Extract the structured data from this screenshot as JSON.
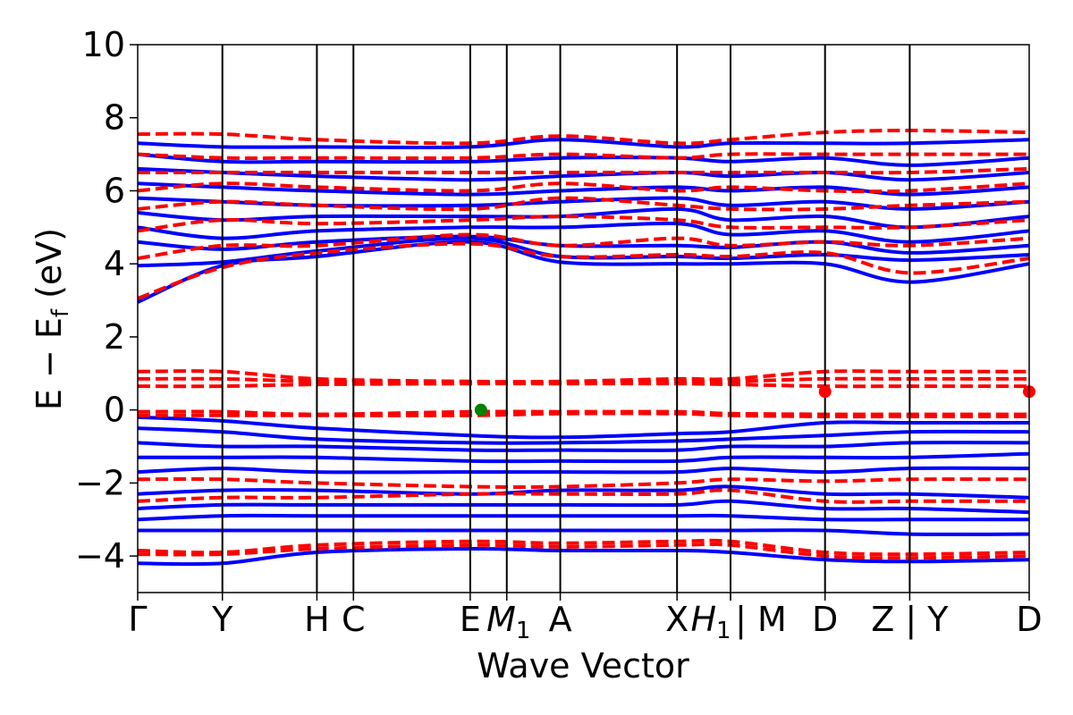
{
  "chart_data": {
    "type": "line",
    "title": "",
    "xlabel": "Wave Vector",
    "ylabel_main": "E − E",
    "ylabel_sub": "f",
    "ylabel_unit": " (eV)",
    "ylim": [
      -5,
      10
    ],
    "yticks": [
      -4,
      -2,
      0,
      2,
      4,
      6,
      8,
      10
    ],
    "ytick_labels": [
      "−4",
      "−2",
      "0",
      "2",
      "4",
      "6",
      "8",
      "10"
    ],
    "grid": false,
    "legend": "none",
    "kpath": [
      {
        "label": "Γ",
        "k": 0.0
      },
      {
        "label": "Y",
        "k": 0.095
      },
      {
        "label": "H",
        "k": 0.201
      },
      {
        "label": "C",
        "k": 0.242
      },
      {
        "label": "E",
        "k": 0.373
      },
      {
        "label": "M",
        "sub": "1",
        "k": 0.414
      },
      {
        "label": "A",
        "k": 0.474
      },
      {
        "label": "X",
        "k": 0.605
      },
      {
        "label": "H",
        "sub": "1",
        "k": 0.665
      },
      {
        "label": "| M",
        "k": 0.665
      },
      {
        "label": "D",
        "k": 0.771
      },
      {
        "label": "Z | Y",
        "k": 0.866
      },
      {
        "label": "D",
        "k": 1.0
      }
    ],
    "path_breaks": [
      0.665,
      0.866
    ],
    "series": [
      {
        "style": "solid",
        "color": "#0000ff",
        "bands": [
          {
            "k": [
              0,
              0.095,
              0.201,
              0.373,
              0.474,
              0.605,
              0.665,
              0.771,
              0.866,
              1.0
            ],
            "y": [
              2.95,
              3.95,
              4.2,
              4.6,
              4.05,
              4.0,
              4.0,
              4.0,
              3.5,
              4.0
            ]
          },
          {
            "k": [
              0,
              0.095,
              0.201,
              0.373,
              0.474,
              0.605,
              0.665,
              0.771,
              0.866,
              1.0
            ],
            "y": [
              3.95,
              4.05,
              4.35,
              4.7,
              4.2,
              4.2,
              4.15,
              4.25,
              4.1,
              4.25
            ]
          },
          {
            "k": [
              0,
              0.095,
              0.201,
              0.373,
              0.474,
              0.605,
              0.665,
              0.771,
              0.866,
              1.0
            ],
            "y": [
              4.6,
              4.4,
              4.6,
              4.75,
              4.5,
              4.5,
              4.45,
              4.6,
              4.3,
              4.5
            ]
          },
          {
            "k": [
              0,
              0.095,
              0.201,
              0.373,
              0.474,
              0.605,
              0.665,
              0.771,
              0.866,
              1.0
            ],
            "y": [
              5.0,
              4.7,
              4.9,
              5.0,
              5.0,
              5.1,
              4.8,
              4.9,
              4.6,
              4.9
            ]
          },
          {
            "k": [
              0,
              0.095,
              0.201,
              0.373,
              0.474,
              0.605,
              0.665,
              0.771,
              0.866,
              1.0
            ],
            "y": [
              5.4,
              5.2,
              5.3,
              5.3,
              5.3,
              5.5,
              5.2,
              5.3,
              5.0,
              5.3
            ]
          },
          {
            "k": [
              0,
              0.095,
              0.201,
              0.373,
              0.474,
              0.605,
              0.665,
              0.771,
              0.866,
              1.0
            ],
            "y": [
              5.8,
              5.7,
              5.6,
              5.6,
              5.7,
              5.8,
              5.6,
              5.7,
              5.5,
              5.7
            ]
          },
          {
            "k": [
              0,
              0.095,
              0.201,
              0.373,
              0.474,
              0.605,
              0.665,
              0.771,
              0.866,
              1.0
            ],
            "y": [
              6.2,
              6.1,
              6.0,
              5.9,
              6.0,
              6.1,
              6.0,
              6.1,
              5.9,
              6.1
            ]
          },
          {
            "k": [
              0,
              0.095,
              0.201,
              0.373,
              0.474,
              0.605,
              0.665,
              0.771,
              0.866,
              1.0
            ],
            "y": [
              6.6,
              6.5,
              6.4,
              6.3,
              6.4,
              6.5,
              6.4,
              6.5,
              6.3,
              6.5
            ]
          },
          {
            "k": [
              0,
              0.095,
              0.201,
              0.373,
              0.474,
              0.605,
              0.665,
              0.771,
              0.866,
              1.0
            ],
            "y": [
              7.0,
              6.8,
              6.8,
              6.8,
              6.9,
              6.9,
              6.8,
              6.9,
              6.7,
              6.9
            ]
          },
          {
            "k": [
              0,
              0.095,
              0.201,
              0.373,
              0.474,
              0.605,
              0.665,
              0.771,
              0.866,
              1.0
            ],
            "y": [
              7.3,
              7.2,
              7.2,
              7.2,
              7.4,
              7.2,
              7.3,
              7.3,
              7.3,
              7.4
            ]
          },
          {
            "k": [
              0,
              0.095,
              0.201,
              0.373,
              0.474,
              0.605,
              0.665,
              0.771,
              0.866,
              1.0
            ],
            "y": [
              -0.2,
              -0.3,
              -0.5,
              -0.7,
              -0.75,
              -0.65,
              -0.6,
              -0.35,
              -0.35,
              -0.35
            ]
          },
          {
            "k": [
              0,
              0.095,
              0.201,
              0.373,
              0.474,
              0.605,
              0.665,
              0.771,
              0.866,
              1.0
            ],
            "y": [
              -0.5,
              -0.6,
              -0.8,
              -0.9,
              -0.9,
              -0.85,
              -0.8,
              -0.7,
              -0.6,
              -0.6
            ]
          },
          {
            "k": [
              0,
              0.095,
              0.201,
              0.373,
              0.474,
              0.605,
              0.665,
              0.771,
              0.866,
              1.0
            ],
            "y": [
              -0.9,
              -1.0,
              -1.0,
              -1.1,
              -1.1,
              -1.1,
              -1.0,
              -1.0,
              -0.9,
              -0.9
            ]
          },
          {
            "k": [
              0,
              0.095,
              0.201,
              0.373,
              0.474,
              0.605,
              0.665,
              0.771,
              0.866,
              1.0
            ],
            "y": [
              -1.3,
              -1.3,
              -1.3,
              -1.4,
              -1.4,
              -1.4,
              -1.3,
              -1.3,
              -1.3,
              -1.2
            ]
          },
          {
            "k": [
              0,
              0.095,
              0.201,
              0.373,
              0.474,
              0.605,
              0.665,
              0.771,
              0.866,
              1.0
            ],
            "y": [
              -1.7,
              -1.6,
              -1.7,
              -1.7,
              -1.7,
              -1.7,
              -1.6,
              -1.7,
              -1.6,
              -1.6
            ]
          },
          {
            "k": [
              0,
              0.095,
              0.201,
              0.373,
              0.474,
              0.605,
              0.665,
              0.771,
              0.866,
              1.0
            ],
            "y": [
              -2.3,
              -2.2,
              -2.2,
              -2.3,
              -2.2,
              -2.2,
              -2.1,
              -2.3,
              -2.3,
              -2.4
            ]
          },
          {
            "k": [
              0,
              0.095,
              0.201,
              0.373,
              0.474,
              0.605,
              0.665,
              0.771,
              0.866,
              1.0
            ],
            "y": [
              -2.7,
              -2.6,
              -2.6,
              -2.6,
              -2.6,
              -2.6,
              -2.5,
              -2.7,
              -2.7,
              -2.8
            ]
          },
          {
            "k": [
              0,
              0.095,
              0.201,
              0.373,
              0.474,
              0.605,
              0.665,
              0.771,
              0.866,
              1.0
            ],
            "y": [
              -3.0,
              -2.9,
              -2.9,
              -2.9,
              -2.9,
              -2.9,
              -2.9,
              -3.0,
              -3.0,
              -3.0
            ]
          },
          {
            "k": [
              0,
              0.095,
              0.201,
              0.373,
              0.474,
              0.605,
              0.665,
              0.771,
              0.866,
              1.0
            ],
            "y": [
              -3.3,
              -3.3,
              -3.3,
              -3.3,
              -3.3,
              -3.3,
              -3.3,
              -3.3,
              -3.4,
              -3.4
            ]
          },
          {
            "k": [
              0,
              0.095,
              0.201,
              0.373,
              0.474,
              0.605,
              0.665,
              0.771,
              0.866,
              1.0
            ],
            "y": [
              -4.2,
              -4.2,
              -3.9,
              -3.8,
              -3.85,
              -3.85,
              -3.9,
              -4.1,
              -4.15,
              -4.1
            ]
          }
        ]
      },
      {
        "style": "dashed",
        "color": "#ff0000",
        "bands": [
          {
            "k": [
              0,
              0.095,
              0.201,
              0.373,
              0.474,
              0.605,
              0.665,
              0.771,
              0.866,
              1.0
            ],
            "y": [
              3.05,
              3.9,
              4.3,
              4.55,
              4.2,
              4.25,
              4.2,
              4.3,
              3.75,
              4.15
            ]
          },
          {
            "k": [
              0,
              0.095,
              0.201,
              0.373,
              0.474,
              0.605,
              0.665,
              0.771,
              0.866,
              1.0
            ],
            "y": [
              4.15,
              4.5,
              4.5,
              4.8,
              4.5,
              4.7,
              4.5,
              4.6,
              4.5,
              4.7
            ]
          },
          {
            "k": [
              0,
              0.095,
              0.201,
              0.373,
              0.474,
              0.605,
              0.665,
              0.771,
              0.866,
              1.0
            ],
            "y": [
              4.9,
              5.2,
              5.1,
              5.2,
              5.3,
              5.2,
              5.0,
              5.0,
              5.0,
              5.2
            ]
          },
          {
            "k": [
              0,
              0.095,
              0.201,
              0.373,
              0.474,
              0.605,
              0.665,
              0.771,
              0.866,
              1.0
            ],
            "y": [
              5.5,
              5.7,
              5.6,
              5.5,
              5.8,
              5.6,
              5.5,
              5.5,
              5.6,
              5.7
            ]
          },
          {
            "k": [
              0,
              0.095,
              0.201,
              0.373,
              0.474,
              0.605,
              0.665,
              0.771,
              0.866,
              1.0
            ],
            "y": [
              6.0,
              6.2,
              6.1,
              6.0,
              6.2,
              6.0,
              6.1,
              6.0,
              6.0,
              6.2
            ]
          },
          {
            "k": [
              0,
              0.095,
              0.201,
              0.373,
              0.474,
              0.605,
              0.665,
              0.771,
              0.866,
              1.0
            ],
            "y": [
              6.5,
              6.5,
              6.5,
              6.5,
              6.5,
              6.5,
              6.5,
              6.5,
              6.5,
              6.6
            ]
          },
          {
            "k": [
              0,
              0.095,
              0.201,
              0.373,
              0.474,
              0.605,
              0.665,
              0.771,
              0.866,
              1.0
            ],
            "y": [
              7.0,
              6.9,
              6.9,
              6.9,
              7.0,
              6.9,
              7.0,
              7.0,
              7.0,
              7.0
            ]
          },
          {
            "k": [
              0,
              0.095,
              0.201,
              0.373,
              0.474,
              0.605,
              0.665,
              0.771,
              0.866,
              1.0
            ],
            "y": [
              7.55,
              7.55,
              7.4,
              7.3,
              7.5,
              7.3,
              7.4,
              7.6,
              7.65,
              7.6
            ]
          },
          {
            "k": [
              0,
              0.095,
              0.201,
              0.373,
              0.474,
              0.605,
              0.665,
              0.771,
              0.866,
              1.0
            ],
            "y": [
              1.05,
              1.05,
              0.85,
              0.78,
              0.78,
              0.85,
              0.85,
              1.05,
              1.05,
              1.05
            ]
          },
          {
            "k": [
              0,
              0.095,
              0.201,
              0.373,
              0.474,
              0.605,
              0.665,
              0.771,
              0.866,
              1.0
            ],
            "y": [
              0.85,
              0.85,
              0.78,
              0.75,
              0.75,
              0.78,
              0.78,
              0.85,
              0.85,
              0.85
            ]
          },
          {
            "k": [
              0,
              0.095,
              0.201,
              0.373,
              0.474,
              0.605,
              0.665,
              0.771,
              0.866,
              1.0
            ],
            "y": [
              0.65,
              0.65,
              0.7,
              0.72,
              0.72,
              0.72,
              0.7,
              0.65,
              0.65,
              0.65
            ]
          },
          {
            "k": [
              0,
              0.095,
              0.201,
              0.373,
              0.474,
              0.605,
              0.665,
              0.771,
              0.866,
              1.0
            ],
            "y": [
              -0.05,
              -0.05,
              -0.12,
              -0.05,
              -0.05,
              -0.05,
              -0.1,
              -0.12,
              -0.12,
              -0.12
            ]
          },
          {
            "k": [
              0,
              0.095,
              0.201,
              0.373,
              0.474,
              0.605,
              0.665,
              0.771,
              0.866,
              1.0
            ],
            "y": [
              -0.15,
              -0.15,
              -0.15,
              -0.15,
              -0.1,
              -0.1,
              -0.15,
              -0.18,
              -0.18,
              -0.18
            ]
          },
          {
            "k": [
              0,
              0.095,
              0.201,
              0.373,
              0.474,
              0.605,
              0.665,
              0.771,
              0.866,
              1.0
            ],
            "y": [
              -1.9,
              -1.9,
              -2.0,
              -2.1,
              -2.1,
              -2.0,
              -1.9,
              -1.95,
              -1.9,
              -1.9
            ]
          },
          {
            "k": [
              0,
              0.095,
              0.201,
              0.373,
              0.474,
              0.605,
              0.665,
              0.771,
              0.866,
              1.0
            ],
            "y": [
              -2.5,
              -2.4,
              -2.4,
              -2.3,
              -2.3,
              -2.3,
              -2.2,
              -2.5,
              -2.5,
              -2.5
            ]
          },
          {
            "k": [
              0,
              0.095,
              0.201,
              0.373,
              0.474,
              0.605,
              0.665,
              0.771,
              0.866,
              1.0
            ],
            "y": [
              -3.85,
              -3.9,
              -3.7,
              -3.6,
              -3.65,
              -3.6,
              -3.6,
              -3.9,
              -3.95,
              -3.9
            ]
          },
          {
            "k": [
              0,
              0.095,
              0.201,
              0.373,
              0.474,
              0.605,
              0.665,
              0.771,
              0.866,
              1.0
            ],
            "y": [
              -3.95,
              -3.95,
              -3.8,
              -3.7,
              -3.75,
              -3.7,
              -3.7,
              -4.0,
              -4.05,
              -4.0
            ]
          }
        ]
      }
    ],
    "markers": [
      {
        "k": 0.385,
        "y": 0.0,
        "color": "#008000"
      },
      {
        "k": 0.771,
        "y": 0.5,
        "color": "#ff0000"
      },
      {
        "k": 1.0,
        "y": 0.5,
        "color": "#ff0000"
      }
    ]
  }
}
